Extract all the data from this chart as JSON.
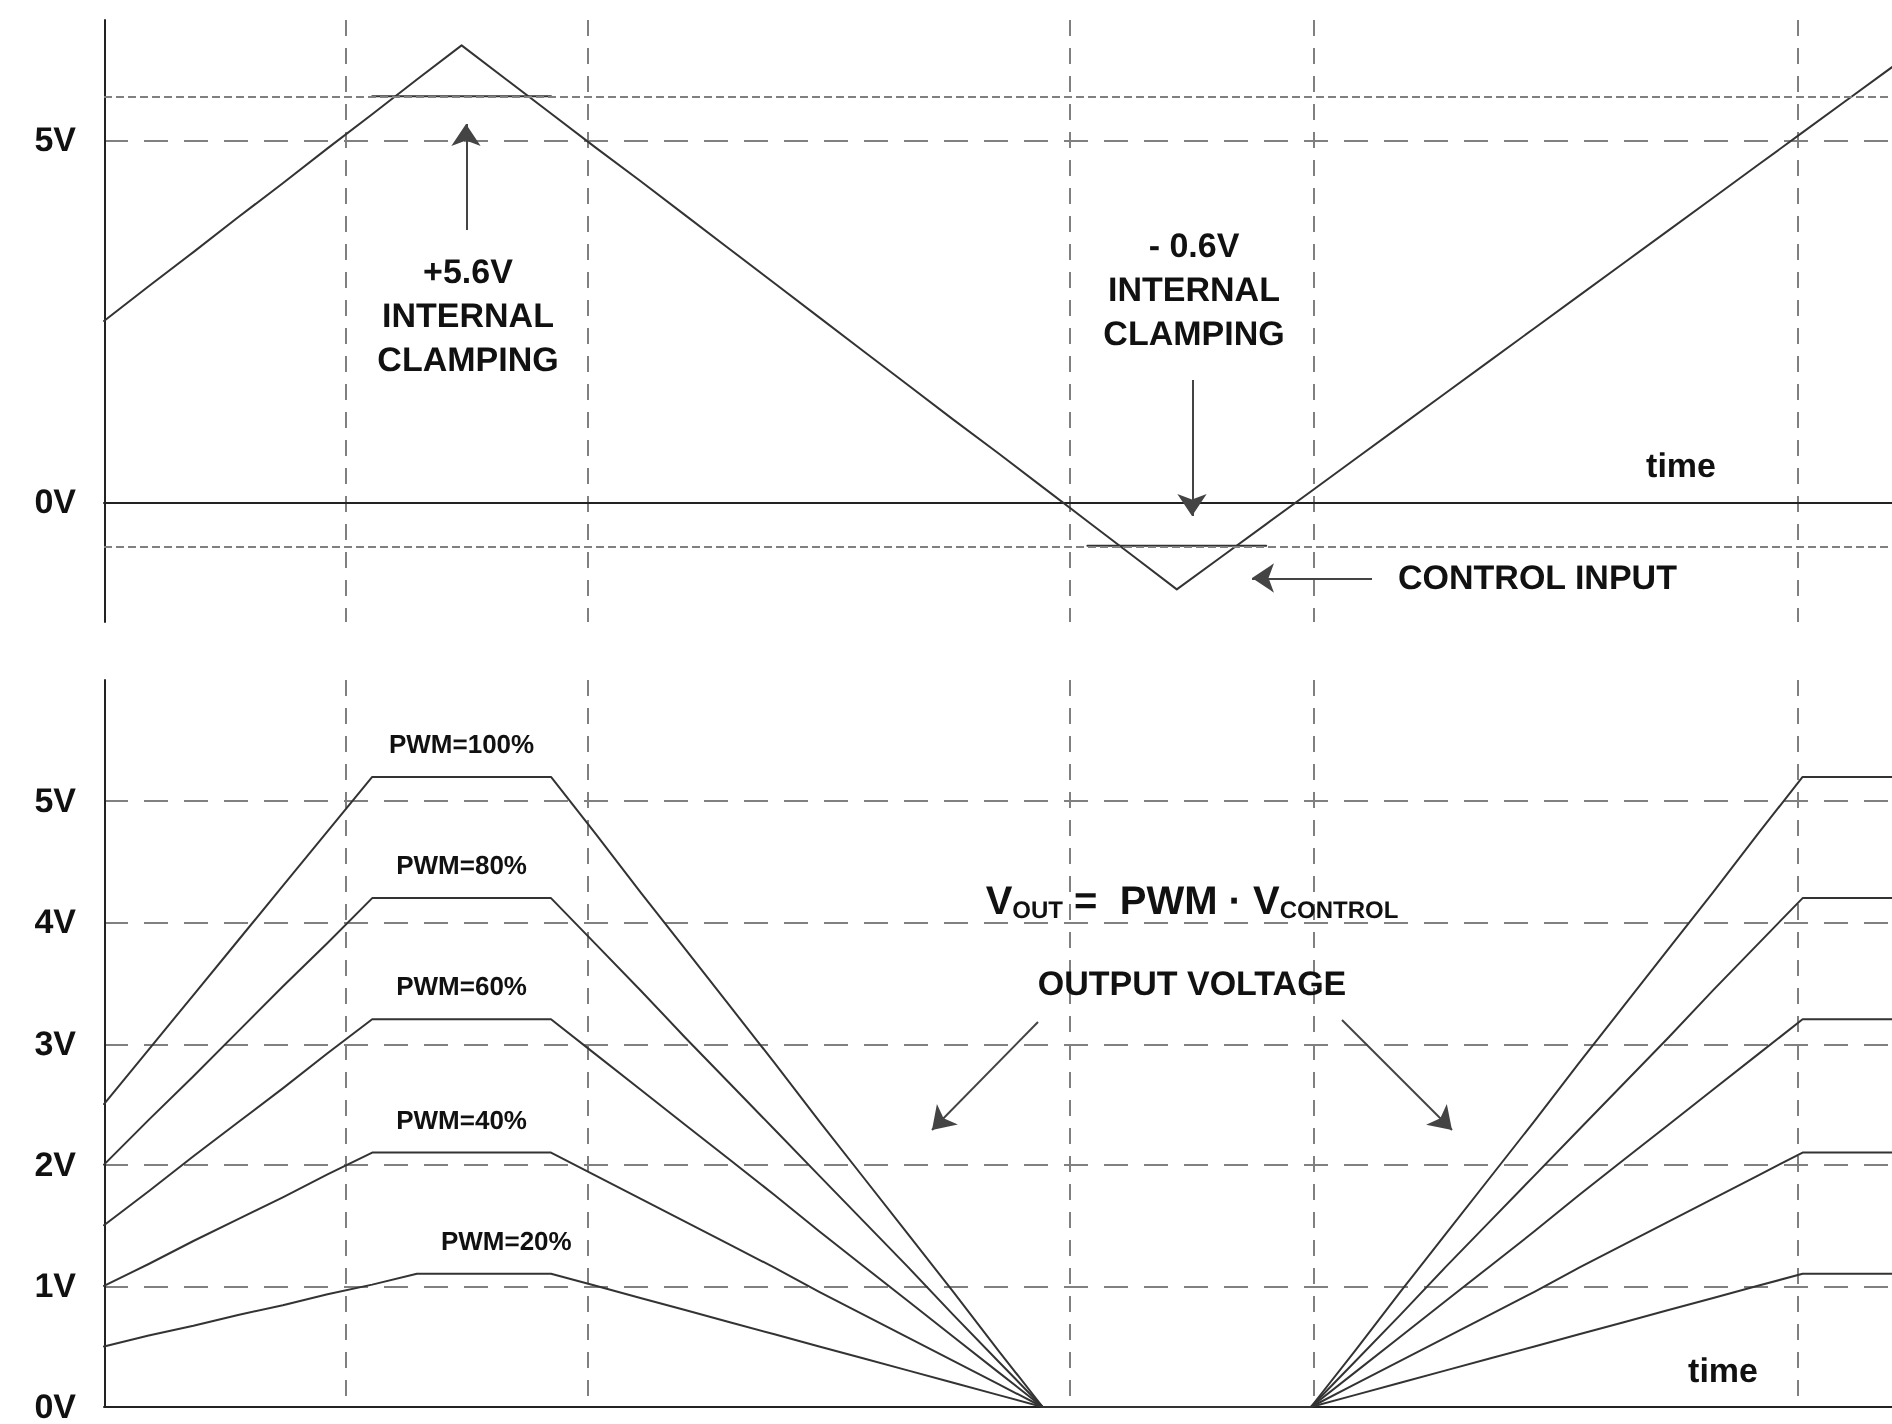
{
  "chart_data": [
    {
      "type": "line",
      "xlabel": "time",
      "categories": [
        null,
        null,
        null,
        null,
        null,
        null,
        null,
        null,
        null,
        null,
        null,
        null,
        null,
        null,
        null,
        null,
        null,
        null,
        null,
        null,
        null,
        null,
        null,
        null,
        null,
        null,
        null,
        null,
        null,
        null,
        null,
        null,
        null,
        null,
        null,
        null,
        null,
        null,
        null,
        null,
        null
      ],
      "ylim": [
        -1.65,
        6.65
      ],
      "yticks": [
        {
          "value": 0,
          "label": "0V"
        },
        {
          "value": 5,
          "label": "5V"
        }
      ],
      "tick_labels": "y",
      "grid": "y",
      "marker": "none",
      "line_style": "solid",
      "series": [
        {
          "color": "#333333",
          "values": [
            2.5,
            2.98,
            3.45,
            3.93,
            4.4,
            4.88,
            5.35,
            5.83,
            6.3,
            5.83,
            5.36,
            4.89,
            4.43,
            3.96,
            3.49,
            3.02,
            2.55,
            2.08,
            1.61,
            1.14,
            0.68,
            0.21,
            -0.26,
            -0.73,
            -1.2,
            -0.75,
            -0.3,
            0.15,
            0.6,
            1.05,
            1.5,
            1.95,
            2.4,
            2.85,
            3.3,
            3.75,
            4.2,
            4.65,
            5.1,
            5.55,
            6.0
          ]
        },
        {
          "color": "#333333",
          "values": [
            null,
            null,
            null,
            null,
            null,
            null,
            5.6,
            5.6,
            5.6,
            5.6,
            5.6,
            null,
            null,
            null,
            null,
            null,
            null,
            null,
            null,
            null,
            null,
            null,
            -0.6,
            -0.6,
            -0.6,
            -0.6,
            -0.6,
            null,
            null,
            null,
            null,
            null,
            null,
            null,
            null,
            null,
            null,
            null,
            null,
            null,
            null
          ]
        }
      ],
      "ref_lines": [
        {
          "axis": "y",
          "value": 5.6,
          "color": "#808080",
          "line_style": "dashed"
        },
        {
          "axis": "y",
          "value": -0.6,
          "color": "#808080",
          "line_style": "dashed"
        }
      ],
      "annotations": [
        "+5.6V\nINTERNAL\nCLAMPING",
        "- 0.6V\nINTERNAL\nCLAMPING",
        "CONTROL INPUT"
      ]
    },
    {
      "type": "line",
      "xlabel": "time",
      "categories": [
        null,
        null,
        null,
        null,
        null,
        null,
        null,
        null,
        null,
        null,
        null,
        null,
        null,
        null,
        null,
        null,
        null,
        null,
        null,
        null,
        null,
        null,
        null,
        null,
        null,
        null,
        null,
        null,
        null,
        null,
        null,
        null,
        null,
        null,
        null,
        null,
        null,
        null,
        null,
        null,
        null
      ],
      "ylim": [
        0,
        6
      ],
      "yticks": [
        {
          "value": 0,
          "label": "0V"
        },
        {
          "value": 1,
          "label": "1V"
        },
        {
          "value": 2,
          "label": "2V"
        },
        {
          "value": 3,
          "label": "3V"
        },
        {
          "value": 4,
          "label": "4V"
        },
        {
          "value": 5,
          "label": "5V"
        }
      ],
      "tick_labels": "y",
      "grid": "y",
      "marker": "none",
      "line_style": "solid",
      "series": [
        {
          "name": "PWM=100%",
          "color": "#333333",
          "values": [
            2.5,
            2.95,
            3.4,
            3.85,
            4.3,
            4.75,
            5.2,
            5.2,
            5.2,
            5.2,
            5.2,
            4.73,
            4.25,
            3.78,
            3.31,
            2.84,
            2.36,
            1.89,
            1.42,
            0.95,
            0.47,
            0,
            0,
            0,
            0,
            0,
            0,
            0,
            0.47,
            0.95,
            1.42,
            1.89,
            2.36,
            2.84,
            3.31,
            3.78,
            4.25,
            4.73,
            5.2,
            5.2,
            5.2
          ]
        },
        {
          "name": "PWM=80%",
          "color": "#333333",
          "values": [
            2.0,
            2.37,
            2.73,
            3.1,
            3.47,
            3.83,
            4.2,
            4.2,
            4.2,
            4.2,
            4.2,
            3.82,
            3.44,
            3.05,
            2.67,
            2.29,
            1.91,
            1.53,
            1.15,
            0.76,
            0.38,
            0,
            0,
            0,
            0,
            0,
            0,
            0,
            0.38,
            0.76,
            1.15,
            1.53,
            1.91,
            2.29,
            2.67,
            3.05,
            3.44,
            3.82,
            4.2,
            4.2,
            4.2
          ]
        },
        {
          "name": "PWM=60%",
          "color": "#333333",
          "values": [
            1.5,
            1.78,
            2.07,
            2.35,
            2.63,
            2.92,
            3.2,
            3.2,
            3.2,
            3.2,
            3.2,
            2.91,
            2.62,
            2.33,
            2.04,
            1.75,
            1.45,
            1.16,
            0.87,
            0.58,
            0.29,
            0,
            0,
            0,
            0,
            0,
            0,
            0,
            0.29,
            0.58,
            0.87,
            1.16,
            1.45,
            1.75,
            2.04,
            2.33,
            2.62,
            2.91,
            3.2,
            3.2,
            3.2
          ]
        },
        {
          "name": "PWM=40%",
          "color": "#333333",
          "values": [
            1.0,
            1.18,
            1.37,
            1.55,
            1.73,
            1.92,
            2.1,
            2.1,
            2.1,
            2.1,
            2.1,
            1.91,
            1.72,
            1.53,
            1.34,
            1.15,
            0.95,
            0.76,
            0.57,
            0.38,
            0.19,
            0,
            0,
            0,
            0,
            0,
            0,
            0,
            0.19,
            0.38,
            0.57,
            0.76,
            0.95,
            1.15,
            1.34,
            1.53,
            1.72,
            1.91,
            2.1,
            2.1,
            2.1
          ]
        },
        {
          "name": "PWM=20%",
          "color": "#333333",
          "values": [
            0.5,
            0.59,
            0.67,
            0.76,
            0.84,
            0.93,
            1.01,
            1.1,
            1.1,
            1.1,
            1.1,
            1.0,
            0.9,
            0.8,
            0.7,
            0.6,
            0.5,
            0.4,
            0.3,
            0.2,
            0.1,
            0,
            0,
            0,
            0,
            0,
            0,
            0,
            0.1,
            0.2,
            0.3,
            0.4,
            0.5,
            0.6,
            0.7,
            0.8,
            0.9,
            1.0,
            1.1,
            1.1,
            1.1
          ]
        }
      ],
      "annotations": [
        "V$_{OUT}$ =  PWM · V$_{CONTROL}$",
        "OUTPUT VOLTAGE"
      ]
    }
  ]
}
